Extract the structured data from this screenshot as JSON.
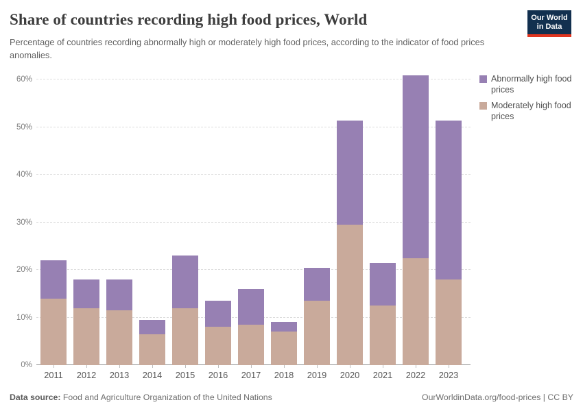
{
  "header": {
    "title": "Share of countries recording high food prices, World",
    "subtitle": "Percentage of countries recording abnormally high or moderately high food prices, according to the indicator of food prices anomalies.",
    "logo": {
      "line1": "Our World",
      "line2": "in Data",
      "bg_color": "#12304f",
      "accent_color": "#e0351f"
    }
  },
  "chart_data": {
    "type": "bar",
    "stacked": true,
    "title": "Share of countries recording high food prices, World",
    "xlabel": "",
    "ylabel": "",
    "ylim": [
      0,
      62.3
    ],
    "yticks": [
      "0%",
      "10%",
      "20%",
      "30%",
      "40%",
      "50%",
      "60%"
    ],
    "ytick_values": [
      0,
      10,
      20,
      30,
      40,
      50,
      60
    ],
    "grid": "horizontal-dashed",
    "legend_position": "right",
    "categories": [
      "2011",
      "2012",
      "2013",
      "2014",
      "2015",
      "2016",
      "2017",
      "2018",
      "2019",
      "2020",
      "2021",
      "2022",
      "2023"
    ],
    "series": [
      {
        "name": "Moderately high food prices",
        "color": "#c9aa9b",
        "values": [
          14,
          12,
          11.5,
          6.5,
          12,
          8,
          8.5,
          7,
          13.5,
          29.5,
          12.5,
          22.5,
          18
        ]
      },
      {
        "name": "Abnormally high food prices",
        "color": "#9780b3",
        "values": [
          8,
          6,
          6.5,
          3,
          11,
          5.5,
          7.5,
          2,
          7,
          21.8,
          9,
          38.3,
          33.3
        ]
      }
    ],
    "totals": [
      22,
      18,
      18,
      9.5,
      23,
      13.5,
      16,
      9,
      20.5,
      51.3,
      21.5,
      60.8,
      51.3
    ]
  },
  "legend": {
    "items": [
      {
        "label": "Abnormally high food prices",
        "color": "#9780b3"
      },
      {
        "label": "Moderately high food prices",
        "color": "#c9aa9b"
      }
    ]
  },
  "footer": {
    "source_label": "Data source:",
    "source_text": " Food and Agriculture Organization of the United Nations",
    "right_text": "OurWorldinData.org/food-prices | CC BY"
  }
}
